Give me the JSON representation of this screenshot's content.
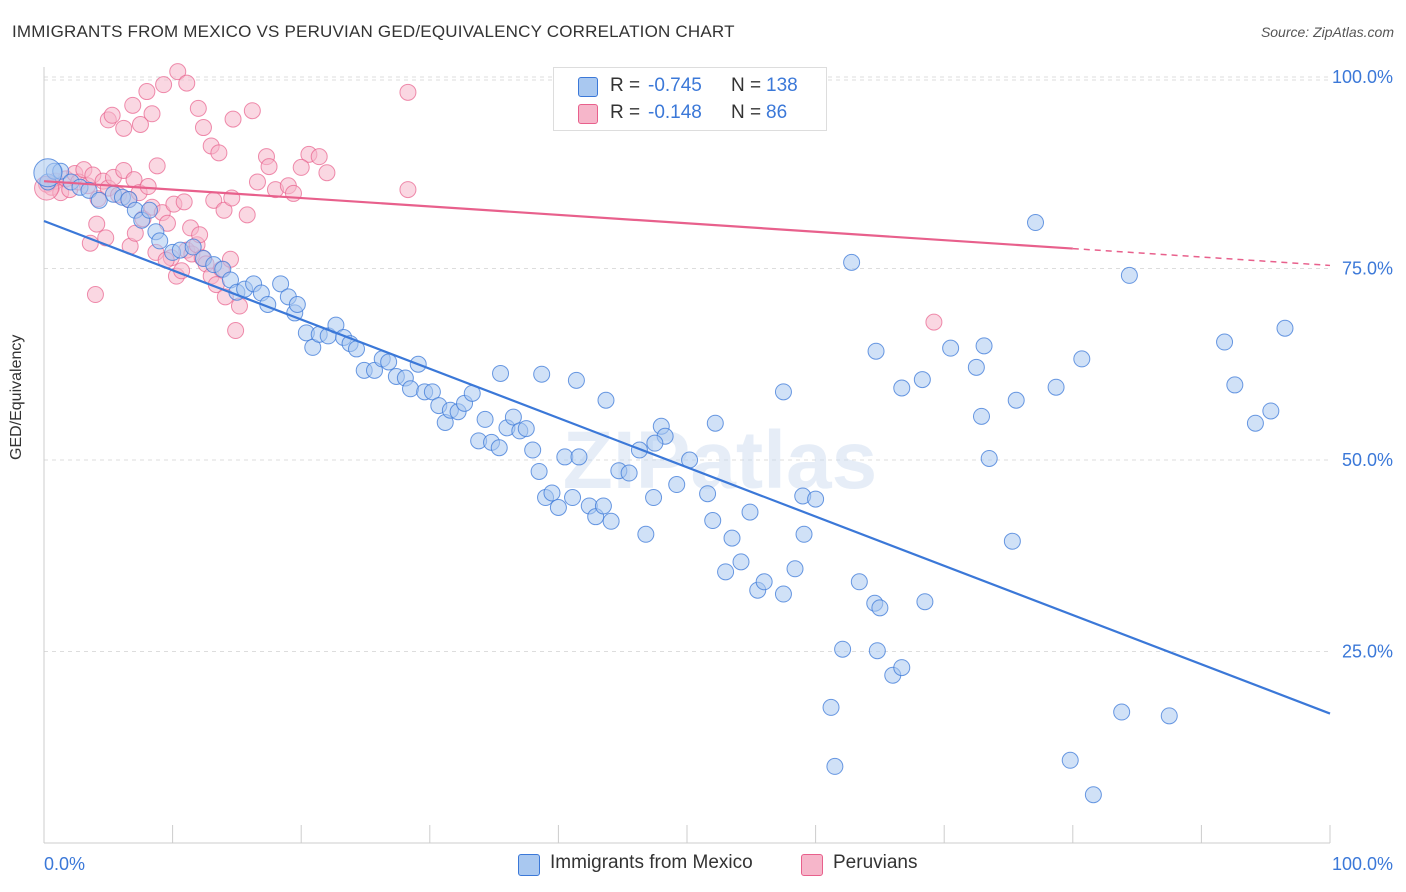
{
  "header": {
    "title": "IMMIGRANTS FROM MEXICO VS PERUVIAN GED/EQUIVALENCY CORRELATION CHART",
    "source": "Source: ZipAtlas.com"
  },
  "colors": {
    "blue": "#3b78d8",
    "blue_fill": "#a9c8f0",
    "pink": "#e8608c",
    "pink_fill": "#f6b6ca",
    "axis_text": "#3b78d8",
    "grid": "#dddddd"
  },
  "legend": {
    "series1": {
      "r_label": "R =",
      "r_value": "-0.745",
      "n_label": "N =",
      "n_value": "138"
    },
    "series2": {
      "r_label": "R =",
      "r_value": "-0.148",
      "n_label": "N =",
      "n_value": "86"
    }
  },
  "bottom_legend": {
    "series1": "Immigrants from Mexico",
    "series2": "Peruvians"
  },
  "chart_data": {
    "type": "scatter",
    "title": "IMMIGRANTS FROM MEXICO VS PERUVIAN GED/EQUIVALENCY CORRELATION CHART",
    "xlabel": "",
    "ylabel": "GED/Equivalency",
    "xlim": [
      0,
      100
    ],
    "ylim": [
      0,
      100
    ],
    "x_tick_labels": [
      "0.0%",
      "100.0%"
    ],
    "y_tick_labels": [
      "100.0%",
      "75.0%",
      "50.0%",
      "25.0%"
    ],
    "y_ticks": [
      100,
      75,
      50,
      25
    ],
    "grid": true,
    "watermark": "ZIPatlas",
    "series": [
      {
        "name": "Immigrants from Mexico",
        "color": "#3b78d8",
        "r": -0.745,
        "n": 138,
        "trend": {
          "x": [
            0,
            100
          ],
          "y": [
            81.2,
            16.9
          ]
        },
        "points": [
          [
            0.3,
            86.3
          ],
          [
            0.8,
            87.7
          ],
          [
            1.3,
            87.7
          ],
          [
            2.1,
            86.3
          ],
          [
            2.8,
            85.6
          ],
          [
            3.5,
            85.2
          ],
          [
            4.3,
            83.9
          ],
          [
            5.4,
            84.7
          ],
          [
            6.1,
            84.3
          ],
          [
            6.6,
            84.0
          ],
          [
            7.1,
            82.6
          ],
          [
            7.6,
            81.3
          ],
          [
            8.2,
            82.6
          ],
          [
            8.7,
            79.8
          ],
          [
            9.0,
            78.6
          ],
          [
            10.0,
            77.1
          ],
          [
            10.6,
            77.4
          ],
          [
            11.6,
            77.8
          ],
          [
            12.4,
            76.3
          ],
          [
            13.2,
            75.5
          ],
          [
            13.9,
            74.9
          ],
          [
            14.5,
            73.5
          ],
          [
            15.0,
            71.9
          ],
          [
            15.6,
            72.3
          ],
          [
            16.3,
            73.0
          ],
          [
            16.9,
            71.8
          ],
          [
            17.4,
            70.3
          ],
          [
            18.4,
            73.0
          ],
          [
            19.0,
            71.3
          ],
          [
            19.5,
            69.2
          ],
          [
            19.7,
            70.3
          ],
          [
            20.4,
            66.6
          ],
          [
            20.9,
            64.7
          ],
          [
            21.4,
            66.4
          ],
          [
            22.1,
            66.2
          ],
          [
            22.7,
            67.6
          ],
          [
            23.3,
            66.0
          ],
          [
            23.8,
            65.2
          ],
          [
            24.3,
            64.5
          ],
          [
            24.9,
            61.7
          ],
          [
            25.7,
            61.7
          ],
          [
            26.3,
            63.2
          ],
          [
            26.8,
            62.8
          ],
          [
            27.4,
            60.9
          ],
          [
            28.1,
            60.7
          ],
          [
            28.5,
            59.3
          ],
          [
            29.1,
            62.5
          ],
          [
            29.6,
            58.9
          ],
          [
            30.2,
            58.9
          ],
          [
            30.7,
            57.1
          ],
          [
            31.2,
            54.9
          ],
          [
            31.6,
            56.5
          ],
          [
            32.2,
            56.3
          ],
          [
            32.7,
            57.4
          ],
          [
            33.3,
            58.7
          ],
          [
            33.8,
            52.5
          ],
          [
            34.3,
            55.3
          ],
          [
            34.8,
            52.3
          ],
          [
            35.4,
            51.6
          ],
          [
            36.0,
            54.2
          ],
          [
            36.5,
            55.6
          ],
          [
            37.0,
            53.8
          ],
          [
            37.5,
            54.1
          ],
          [
            38.0,
            51.3
          ],
          [
            38.5,
            48.5
          ],
          [
            39.0,
            45.1
          ],
          [
            39.5,
            45.7
          ],
          [
            40.0,
            43.8
          ],
          [
            40.5,
            50.4
          ],
          [
            41.1,
            45.1
          ],
          [
            41.6,
            50.4
          ],
          [
            42.4,
            44.0
          ],
          [
            42.9,
            42.6
          ],
          [
            43.5,
            44.0
          ],
          [
            44.1,
            42.0
          ],
          [
            44.7,
            48.6
          ],
          [
            45.5,
            48.3
          ],
          [
            46.3,
            51.3
          ],
          [
            46.8,
            40.3
          ],
          [
            47.4,
            45.1
          ],
          [
            48.0,
            54.4
          ],
          [
            48.3,
            53.1
          ],
          [
            49.2,
            46.8
          ],
          [
            50.2,
            50.0
          ],
          [
            51.6,
            45.6
          ],
          [
            52.0,
            42.1
          ],
          [
            53.0,
            35.4
          ],
          [
            53.5,
            39.8
          ],
          [
            54.2,
            36.7
          ],
          [
            54.9,
            43.2
          ],
          [
            55.5,
            33.0
          ],
          [
            56.0,
            34.1
          ],
          [
            57.5,
            32.5
          ],
          [
            58.4,
            35.8
          ],
          [
            59.1,
            40.3
          ],
          [
            59.0,
            45.3
          ],
          [
            60.0,
            44.9
          ],
          [
            61.2,
            17.7
          ],
          [
            61.5,
            10.0
          ],
          [
            62.1,
            25.3
          ],
          [
            63.4,
            34.1
          ],
          [
            64.6,
            31.3
          ],
          [
            64.8,
            25.1
          ],
          [
            65.0,
            30.7
          ],
          [
            66.0,
            21.9
          ],
          [
            66.7,
            22.9
          ],
          [
            68.5,
            31.5
          ],
          [
            35.5,
            61.3
          ],
          [
            38.7,
            61.2
          ],
          [
            41.4,
            60.4
          ],
          [
            43.7,
            57.8
          ],
          [
            47.5,
            52.2
          ],
          [
            52.2,
            54.8
          ],
          [
            57.5,
            58.9
          ],
          [
            62.8,
            75.8
          ],
          [
            64.7,
            64.2
          ],
          [
            66.7,
            59.4
          ],
          [
            68.3,
            60.5
          ],
          [
            70.5,
            64.6
          ],
          [
            73.1,
            64.9
          ],
          [
            73.5,
            50.2
          ],
          [
            75.3,
            39.4
          ],
          [
            77.1,
            81.0
          ],
          [
            79.8,
            10.8
          ],
          [
            81.6,
            6.3
          ],
          [
            83.8,
            17.1
          ],
          [
            87.5,
            16.6
          ],
          [
            95.4,
            56.4
          ],
          [
            96.5,
            67.2
          ],
          [
            72.5,
            62.1
          ],
          [
            72.9,
            55.7
          ],
          [
            75.6,
            57.8
          ],
          [
            78.7,
            59.5
          ],
          [
            80.7,
            63.2
          ],
          [
            84.4,
            74.1
          ],
          [
            91.8,
            65.4
          ],
          [
            92.6,
            59.8
          ],
          [
            94.2,
            54.8
          ]
        ]
      },
      {
        "name": "Peruvians",
        "color": "#e8608c",
        "r": -0.148,
        "n": 86,
        "trend": {
          "x": [
            0,
            80
          ],
          "y": [
            86.4,
            77.6
          ],
          "dashed_to": {
            "x": 100,
            "y": 75.4
          }
        },
        "points": [
          [
            0.2,
            86.0
          ],
          [
            0.6,
            85.6
          ],
          [
            0.9,
            86.4
          ],
          [
            1.3,
            84.9
          ],
          [
            1.7,
            86.7
          ],
          [
            2.0,
            85.3
          ],
          [
            2.4,
            87.4
          ],
          [
            2.7,
            86.3
          ],
          [
            3.1,
            87.9
          ],
          [
            3.4,
            85.8
          ],
          [
            3.8,
            87.2
          ],
          [
            4.2,
            84.1
          ],
          [
            4.6,
            86.4
          ],
          [
            5.0,
            85.5
          ],
          [
            5.4,
            86.9
          ],
          [
            5.8,
            84.6
          ],
          [
            6.2,
            87.8
          ],
          [
            6.6,
            84.0
          ],
          [
            7.0,
            86.6
          ],
          [
            7.4,
            84.9
          ],
          [
            7.7,
            81.5
          ],
          [
            8.1,
            85.7
          ],
          [
            8.4,
            83.0
          ],
          [
            8.8,
            88.4
          ],
          [
            9.2,
            82.3
          ],
          [
            9.6,
            80.9
          ],
          [
            9.9,
            76.4
          ],
          [
            10.3,
            74.0
          ],
          [
            10.7,
            74.7
          ],
          [
            11.1,
            77.4
          ],
          [
            11.5,
            76.9
          ],
          [
            11.9,
            78.1
          ],
          [
            12.3,
            76.4
          ],
          [
            12.6,
            75.6
          ],
          [
            13.0,
            74.0
          ],
          [
            13.4,
            72.9
          ],
          [
            13.8,
            74.9
          ],
          [
            14.1,
            71.3
          ],
          [
            14.5,
            76.2
          ],
          [
            14.9,
            66.9
          ],
          [
            15.2,
            70.1
          ],
          [
            5.0,
            94.4
          ],
          [
            5.3,
            95.0
          ],
          [
            6.2,
            93.3
          ],
          [
            6.9,
            96.3
          ],
          [
            7.5,
            93.8
          ],
          [
            8.0,
            98.1
          ],
          [
            8.4,
            95.2
          ],
          [
            9.3,
            99.0
          ],
          [
            10.4,
            100.7
          ],
          [
            11.1,
            99.2
          ],
          [
            12.0,
            95.9
          ],
          [
            12.4,
            93.4
          ],
          [
            13.0,
            91.0
          ],
          [
            13.6,
            90.1
          ],
          [
            14.7,
            94.5
          ],
          [
            16.2,
            95.6
          ],
          [
            17.3,
            89.6
          ],
          [
            18.0,
            85.3
          ],
          [
            28.3,
            85.3
          ],
          [
            28.3,
            98.0
          ],
          [
            20.6,
            89.9
          ],
          [
            21.4,
            89.6
          ],
          [
            22.0,
            87.5
          ],
          [
            4.1,
            80.8
          ],
          [
            4.8,
            79.0
          ],
          [
            3.6,
            78.3
          ],
          [
            4.0,
            71.6
          ],
          [
            6.7,
            77.9
          ],
          [
            7.1,
            79.6
          ],
          [
            8.7,
            77.1
          ],
          [
            9.5,
            76.1
          ],
          [
            10.1,
            83.4
          ],
          [
            10.9,
            83.7
          ],
          [
            11.4,
            80.3
          ],
          [
            12.1,
            79.4
          ],
          [
            13.2,
            83.9
          ],
          [
            14.0,
            82.6
          ],
          [
            14.6,
            84.2
          ],
          [
            15.8,
            82.0
          ],
          [
            16.6,
            86.3
          ],
          [
            17.5,
            88.3
          ],
          [
            19.0,
            85.8
          ],
          [
            19.4,
            84.8
          ],
          [
            69.2,
            68.0
          ],
          [
            20.0,
            88.2
          ]
        ]
      }
    ]
  }
}
